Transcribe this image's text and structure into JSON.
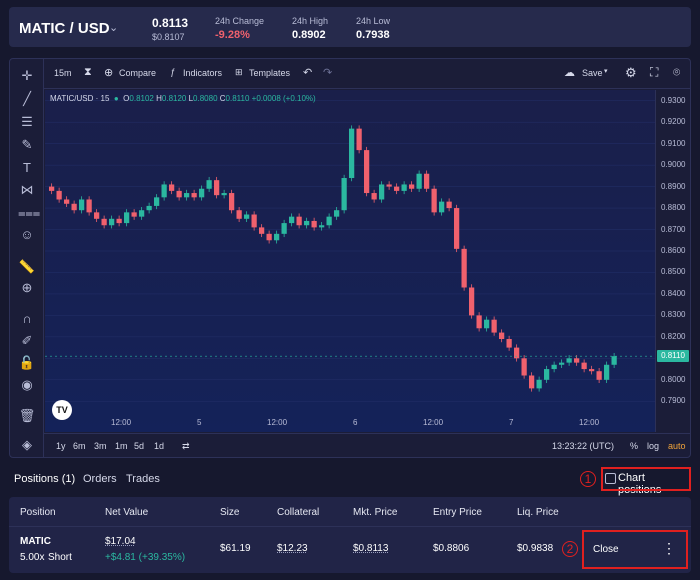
{
  "header": {
    "pair": "MATIC / USD",
    "price": "0.8113",
    "price_sub": "$0.8107",
    "change_label": "24h Change",
    "change_value": "-9.28%",
    "high_label": "24h High",
    "high_value": "0.8902",
    "low_label": "24h Low",
    "low_value": "0.7938"
  },
  "toolbar": {
    "interval": "15m",
    "compare": "Compare",
    "indicators": "Indicators",
    "templates": "Templates",
    "save": "Save"
  },
  "legend": {
    "symbol": "MATIC/USD · 15",
    "o_label": "O",
    "o": "0.8102",
    "h_label": "H",
    "h": "0.8120",
    "l_label": "L",
    "l": "0.8080",
    "c_label": "C",
    "c": "0.8110",
    "chg": "+0.0008 (+0.10%)"
  },
  "chart_data": {
    "type": "candlestick",
    "y_ticks": [
      "0.9300",
      "0.9200",
      "0.9100",
      "0.9000",
      "0.8900",
      "0.8800",
      "0.8700",
      "0.8600",
      "0.8500",
      "0.8400",
      "0.8300",
      "0.8200",
      "0.8100",
      "0.8000",
      "0.7900"
    ],
    "ylim": [
      0.785,
      0.935
    ],
    "x_ticks": [
      "12:00",
      "5",
      "12:00",
      "6",
      "12:00",
      "7",
      "12:00"
    ],
    "last_price": "0.8110",
    "series_close": [
      0.888,
      0.884,
      0.882,
      0.879,
      0.884,
      0.878,
      0.875,
      0.872,
      0.875,
      0.873,
      0.878,
      0.876,
      0.879,
      0.881,
      0.885,
      0.891,
      0.888,
      0.885,
      0.887,
      0.885,
      0.889,
      0.893,
      0.886,
      0.887,
      0.879,
      0.875,
      0.877,
      0.871,
      0.868,
      0.865,
      0.868,
      0.873,
      0.876,
      0.872,
      0.874,
      0.871,
      0.872,
      0.876,
      0.879,
      0.894,
      0.917,
      0.907,
      0.887,
      0.884,
      0.891,
      0.89,
      0.888,
      0.891,
      0.889,
      0.896,
      0.889,
      0.878,
      0.883,
      0.88,
      0.861,
      0.843,
      0.83,
      0.824,
      0.828,
      0.822,
      0.819,
      0.815,
      0.81,
      0.802,
      0.796,
      0.8,
      0.805,
      0.807,
      0.808,
      0.81,
      0.808,
      0.805,
      0.804,
      0.8,
      0.807,
      0.811
    ]
  },
  "bottombar": {
    "ranges": [
      "1y",
      "6m",
      "3m",
      "1m",
      "5d",
      "1d"
    ],
    "time": "13:23:22 (UTC)",
    "percent": "%",
    "log": "log",
    "auto": "auto"
  },
  "tabs": {
    "positions": "Positions (1)",
    "orders": "Orders",
    "trades": "Trades",
    "chart_positions": "Chart positions"
  },
  "annotations": {
    "one": "1",
    "two": "2"
  },
  "table": {
    "headers": [
      "Position",
      "Net Value",
      "Size",
      "Collateral",
      "Mkt. Price",
      "Entry Price",
      "Liq. Price"
    ],
    "row": {
      "asset": "MATIC",
      "leverage": "5.00x",
      "side": "Short",
      "net_value": "$17.04",
      "pnl": "+$4.81 (+39.35%)",
      "size": "$61.19",
      "collateral": "$12.23",
      "mkt_price": "$0.8113",
      "entry_price": "$0.8806",
      "liq_price": "$0.9838",
      "close": "Close",
      "more": "⋮"
    }
  },
  "colors": {
    "up": "#2bb8a0",
    "down": "#f0616d",
    "accent": "#e0201f"
  }
}
